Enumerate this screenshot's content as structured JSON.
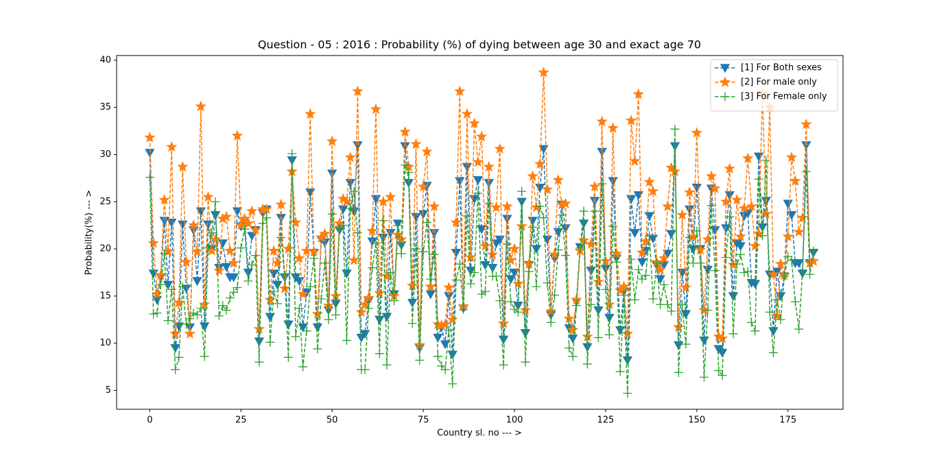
{
  "chart_data": {
    "type": "line",
    "title": "Question - 05 : 2016 : Probability (%) of dying between age 30 and exact age 70",
    "xlabel": "Country sl. no --- >",
    "ylabel": "Probability(%) --- >",
    "xlim": [
      -9.1,
      190.1
    ],
    "ylim": [
      3.0,
      40.5
    ],
    "xticks": [
      0,
      25,
      50,
      75,
      100,
      125,
      150,
      175
    ],
    "yticks": [
      5,
      10,
      15,
      20,
      25,
      30,
      35,
      40
    ],
    "legend": "upper right",
    "x": [
      0,
      1,
      2,
      3,
      4,
      5,
      6,
      7,
      8,
      9,
      10,
      11,
      12,
      13,
      14,
      15,
      16,
      17,
      18,
      19,
      20,
      21,
      22,
      23,
      24,
      25,
      26,
      27,
      28,
      29,
      30,
      31,
      32,
      33,
      34,
      35,
      36,
      37,
      38,
      39,
      40,
      41,
      42,
      43,
      44,
      45,
      46,
      47,
      48,
      49,
      50,
      51,
      52,
      53,
      54,
      55,
      56,
      57,
      58,
      59,
      60,
      61,
      62,
      63,
      64,
      65,
      66,
      67,
      68,
      69,
      70,
      71,
      72,
      73,
      74,
      75,
      76,
      77,
      78,
      79,
      80,
      81,
      82,
      83,
      84,
      85,
      86,
      87,
      88,
      89,
      90,
      91,
      92,
      93,
      94,
      95,
      96,
      97,
      98,
      99,
      100,
      101,
      102,
      103,
      104,
      105,
      106,
      107,
      108,
      109,
      110,
      111,
      112,
      113,
      114,
      115,
      116,
      117,
      118,
      119,
      120,
      121,
      122,
      123,
      124,
      125,
      126,
      127,
      128,
      129,
      130,
      131,
      132,
      133,
      134,
      135,
      136,
      137,
      138,
      139,
      140,
      141,
      142,
      143,
      144,
      145,
      146,
      147,
      148,
      149,
      150,
      151,
      152,
      153,
      154,
      155,
      156,
      157,
      158,
      159,
      160,
      161,
      162,
      163,
      164,
      165,
      166,
      167,
      168,
      169,
      170,
      171,
      172,
      173,
      174,
      175,
      176,
      177,
      178,
      179,
      180,
      181,
      182
    ],
    "series": [
      {
        "name": "[1] For Both sexes",
        "color": "#1f77b4",
        "marker": "triangle-down",
        "values": [
          30.2,
          17.4,
          14.6,
          17.0,
          23.0,
          16.2,
          22.8,
          9.5,
          11.8,
          22.6,
          15.8,
          11.7,
          22.0,
          16.6,
          24.0,
          11.8,
          22.6,
          20.0,
          23.6,
          18.0,
          20.6,
          18.1,
          17.0,
          17.0,
          24.0,
          22.4,
          23.0,
          17.5,
          21.4,
          22.0,
          10.2,
          23.8,
          24.2,
          12.8,
          17.4,
          16.2,
          23.3,
          17.0,
          12.0,
          29.4,
          17.0,
          16.6,
          11.7,
          15.4,
          26.0,
          19.6,
          11.7,
          21.0,
          20.7,
          13.5,
          28.0,
          14.2,
          22.0,
          24.2,
          17.4,
          27.0,
          24.0,
          31.0,
          10.6,
          11.0,
          14.5,
          20.8,
          25.3,
          12.5,
          21.2,
          12.8,
          21.7,
          15.2,
          22.7,
          20.4,
          30.9,
          27.0,
          14.3,
          23.4,
          9.5,
          23.7,
          26.7,
          15.2,
          21.7,
          10.6,
          11.7,
          9.9,
          15.0,
          8.8,
          19.6,
          27.2,
          13.7,
          28.7,
          17.7,
          25.3,
          27.3,
          22.1,
          18.3,
          27.0,
          18.0,
          20.6,
          21.0,
          10.4,
          23.2,
          16.8,
          17.5,
          14.0,
          25.0,
          11.1,
          18.3,
          23.0,
          20.0,
          26.5,
          30.6,
          21.0,
          13.0,
          19.0,
          21.8,
          24.7,
          22.2,
          11.6,
          10.5,
          14.4,
          20.2,
          22.7,
          9.6,
          17.7,
          25.1,
          13.5,
          30.3,
          17.9,
          12.7,
          27.2,
          19.0,
          11.4,
          15.5,
          8.2,
          25.3,
          21.7,
          25.7,
          18.6,
          19.8,
          23.5,
          21.1,
          18.3,
          16.8,
          18.3,
          19.5,
          21.6,
          30.9,
          9.8,
          17.5,
          13.1,
          24.2,
          20.0,
          26.5,
          20.0,
          10.3,
          17.8,
          26.4,
          22.0,
          9.4,
          9.0,
          22.2,
          25.7,
          15.0,
          20.6,
          20.3,
          23.5,
          23.8,
          16.4,
          16.3,
          29.8,
          22.3,
          25.1,
          17.3,
          11.3,
          17.6,
          15.0,
          17.1,
          24.8,
          23.6,
          18.5,
          18.5,
          17.4,
          31.0,
          18.5,
          19.6
        ]
      },
      {
        "name": "[2] For male only",
        "color": "#ff7f0e",
        "marker": "star",
        "values": [
          31.8,
          20.6,
          15.2,
          17.2,
          25.2,
          19.7,
          30.8,
          11.0,
          14.3,
          28.7,
          18.6,
          11.0,
          22.5,
          19.7,
          35.1,
          14.1,
          25.5,
          19.8,
          21.0,
          17.7,
          23.2,
          23.4,
          19.8,
          18.5,
          32.0,
          22.5,
          23.2,
          22.7,
          24.0,
          22.0,
          11.5,
          24.2,
          24.2,
          14.6,
          19.8,
          18.5,
          24.7,
          15.8,
          20.0,
          28.2,
          22.8,
          19.0,
          15.2,
          19.8,
          34.3,
          19.7,
          13.1,
          21.2,
          21.6,
          14.0,
          31.4,
          15.0,
          22.7,
          25.3,
          25.0,
          29.7,
          18.8,
          36.7,
          13.3,
          14.1,
          14.8,
          21.9,
          34.8,
          15.3,
          25.0,
          17.1,
          25.5,
          15.0,
          21.5,
          21.0,
          32.4,
          28.7,
          16.1,
          31.1,
          9.8,
          26.6,
          30.3,
          16.0,
          24.5,
          12.0,
          11.9,
          12.0,
          15.9,
          12.5,
          22.8,
          36.7,
          13.9,
          34.3,
          19.1,
          33.3,
          29.2,
          31.9,
          20.3,
          28.7,
          19.4,
          24.4,
          30.6,
          12.1,
          24.5,
          18.8,
          20.0,
          16.3,
          22.4,
          13.5,
          18.4,
          27.7,
          24.4,
          29.0,
          38.7,
          26.3,
          13.4,
          19.4,
          27.3,
          24.7,
          24.8,
          12.6,
          11.4,
          14.6,
          19.8,
          20.9,
          10.7,
          20.5,
          26.6,
          16.5,
          33.5,
          18.7,
          14.1,
          32.8,
          19.5,
          15.6,
          16.0,
          11.0,
          33.6,
          29.3,
          36.4,
          19.6,
          20.8,
          27.1,
          26.1,
          18.6,
          17.8,
          19.0,
          24.5,
          28.6,
          28.2,
          11.7,
          23.6,
          15.9,
          26.0,
          21.3,
          32.3,
          19.9,
          13.5,
          21.0,
          27.7,
          26.4,
          10.7,
          10.5,
          25.0,
          28.5,
          18.3,
          25.2,
          21.3,
          24.3,
          29.6,
          24.5,
          20.3,
          21.6,
          36.5,
          23.7,
          35.0,
          17.3,
          12.9,
          18.4,
          17.2,
          21.3,
          29.7,
          27.2,
          21.8,
          23.3,
          33.2,
          18.5,
          18.7
        ]
      },
      {
        "name": "[3] For Female only",
        "color": "#2ca02c",
        "marker": "plus",
        "values": [
          27.6,
          13.1,
          13.2,
          16.2,
          19.5,
          12.4,
          15.7,
          7.2,
          8.5,
          16.0,
          12.0,
          12.6,
          13.2,
          13.0,
          13.7,
          8.6,
          20.1,
          21.7,
          25.0,
          12.9,
          14.0,
          13.5,
          14.8,
          15.4,
          15.9,
          20.1,
          22.1,
          16.6,
          18.3,
          19.3,
          8.0,
          22.7,
          23.3,
          10.1,
          15.5,
          14.2,
          21.2,
          17.2,
          8.5,
          30.1,
          10.7,
          13.7,
          7.5,
          11.3,
          16.0,
          19.0,
          9.4,
          14.7,
          18.5,
          12.5,
          23.7,
          13.0,
          22.2,
          22.5,
          10.3,
          24.3,
          26.1,
          21.7,
          7.2,
          7.2,
          13.7,
          18.0,
          20.6,
          8.9,
          23.0,
          7.7,
          17.5,
          14.5,
          22.5,
          19.5,
          28.9,
          28.1,
          12.1,
          20.0,
          8.2,
          19.7,
          22.8,
          16.8,
          19.4,
          8.6,
          7.6,
          7.2,
          11.4,
          5.7,
          16.7,
          18.4,
          13.6,
          23.5,
          16.3,
          17.5,
          25.9,
          15.2,
          15.5,
          24.8,
          17.1,
          17.1,
          14.5,
          7.7,
          20.5,
          14.4,
          13.6,
          13.3,
          26.1,
          8.0,
          17.6,
          22.3,
          16.0,
          24.5,
          23.3,
          16.4,
          12.2,
          15.1,
          19.9,
          23.6,
          19.3,
          9.5,
          8.6,
          14.0,
          20.1,
          24.0,
          7.8,
          14.1,
          24.0,
          10.6,
          26.9,
          15.7,
          10.9,
          22.4,
          18.6,
          7.0,
          15.1,
          4.7,
          18.9,
          14.6,
          17.8,
          16.8,
          17.2,
          21.4,
          14.7,
          18.5,
          14.1,
          16.2,
          14.1,
          13.4,
          32.7,
          6.9,
          14.1,
          9.9,
          21.2,
          18.5,
          21.9,
          18.5,
          6.4,
          13.5,
          24.6,
          17.7,
          7.1,
          6.6,
          19.1,
          23.4,
          11.0,
          18.4,
          19.4,
          17.5,
          17.6,
          12.2,
          11.3,
          27.4,
          21.4,
          29.4,
          13.3,
          9.0,
          14.6,
          12.5,
          17.1,
          19.2,
          18.8,
          14.4,
          11.5,
          17.6,
          28.2,
          17.3,
          19.8
        ]
      }
    ]
  }
}
